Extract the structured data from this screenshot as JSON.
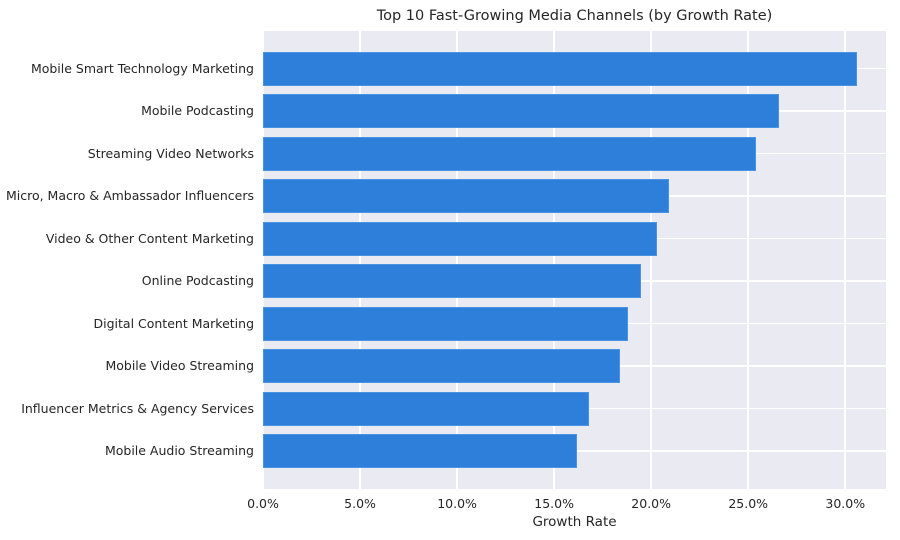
{
  "chart_data": {
    "type": "bar",
    "orientation": "horizontal",
    "title": "Top 10 Fast-Growing Media Channels (by Growth Rate)",
    "xlabel": "Growth Rate",
    "ylabel": "",
    "xlim": [
      0,
      0.321
    ],
    "grid": true,
    "legend": null,
    "categories": [
      "Mobile Smart Technology Marketing",
      "Mobile Podcasting",
      "Streaming Video Networks",
      "Micro, Macro & Ambassador Influencers",
      "Video & Other Content Marketing",
      "Online Podcasting",
      "Digital Content Marketing",
      "Mobile Video Streaming",
      "Influencer Metrics & Agency Services",
      "Mobile Audio Streaming"
    ],
    "values": [
      0.306,
      0.266,
      0.254,
      0.209,
      0.203,
      0.195,
      0.188,
      0.184,
      0.168,
      0.162
    ],
    "xticks": [
      "0.0%",
      "5.0%",
      "10.0%",
      "15.0%",
      "20.0%",
      "25.0%",
      "30.0%"
    ],
    "xtick_values": [
      0,
      0.05,
      0.1,
      0.15,
      0.2,
      0.25,
      0.3
    ],
    "bar_color": "#2e7fd9",
    "background_color": "#eaeaf2"
  }
}
